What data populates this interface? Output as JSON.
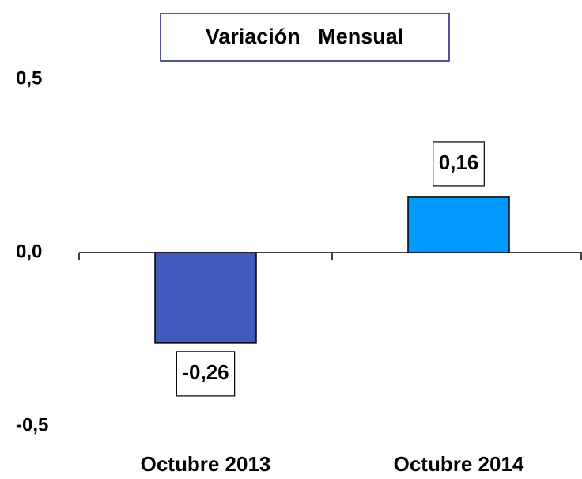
{
  "chart_data": {
    "type": "bar",
    "title": "Variación   Mensual",
    "categories": [
      "Octubre 2013",
      "Octubre 2014"
    ],
    "values": [
      -0.26,
      0.16
    ],
    "value_labels": [
      "-0,26",
      "0,16"
    ],
    "colors": [
      "#3f5bbf",
      "#0099ff"
    ],
    "ylim": [
      -0.5,
      0.5
    ],
    "yticks": [
      {
        "value": 0.5,
        "label": "0,5"
      },
      {
        "value": 0,
        "label": "0,0"
      },
      {
        "value": -0.5,
        "label": "-0,5"
      }
    ]
  }
}
